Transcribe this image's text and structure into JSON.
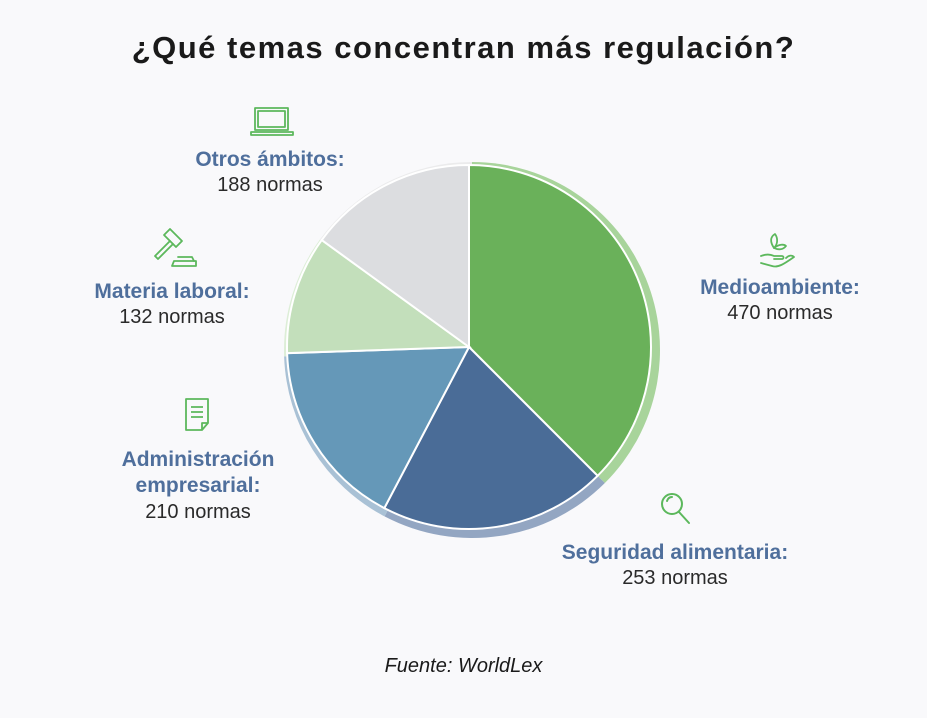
{
  "title": "¿Qué temas concentran más regulación?",
  "source": "Fuente: WorldLex",
  "chart_data": {
    "type": "pie",
    "title": "¿Qué temas concentran más regulación?",
    "unit": "normas",
    "slices": [
      {
        "name": "Medioambiente:",
        "value": 470,
        "value_text": "470 normas",
        "color": "#6ab15a",
        "ring": "#a8d49b",
        "icon": "hand-leaf-icon"
      },
      {
        "name": "Seguridad alimentaria:",
        "value": 253,
        "value_text": "253 normas",
        "color": "#4a6c97",
        "ring": "#93a6c2",
        "icon": "magnifier-icon"
      },
      {
        "name": "Administración empresarial:",
        "value": 210,
        "value_text": "210 normas",
        "color": "#6598b8",
        "ring": "#a9c1d5",
        "icon": "document-icon"
      },
      {
        "name": "Materia laboral:",
        "value": 132,
        "value_text": "132 normas",
        "color": "#c3dfbb",
        "ring": "#ddeed7",
        "icon": "gavel-icon"
      },
      {
        "name": "Otros ámbitos:",
        "value": 188,
        "value_text": "188 normas",
        "color": "#dcdde0",
        "ring": "#ebebec",
        "icon": "laptop-icon"
      }
    ]
  }
}
